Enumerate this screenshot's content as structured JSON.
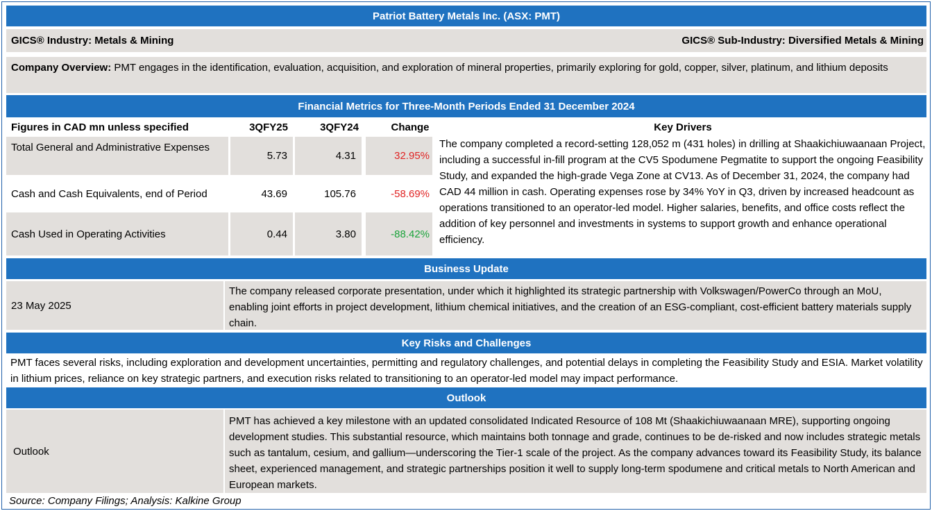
{
  "header": {
    "title": "Patriot Battery Metals Inc. (ASX: PMT)",
    "industry": "GICS® Industry: Metals & Mining",
    "sub_industry": "GICS® Sub-Industry: Diversified Metals & Mining"
  },
  "overview": {
    "label": "Company Overview:",
    "text": " PMT engages in the identification, evaluation, acquisition, and exploration of mineral properties, primarily exploring for gold, copper, silver, platinum, and lithium deposits"
  },
  "financials": {
    "section_title": "Financial Metrics for Three-Month Periods Ended 31 December 2024",
    "columns": [
      "Figures in CAD mn unless specified",
      "3QFY25",
      "3QFY24",
      "Change",
      "Key Drivers"
    ],
    "rows": [
      {
        "label": "Total General and Administrative Expenses",
        "fy25": "5.73",
        "fy24": "4.31",
        "change": "32.95%"
      },
      {
        "label": "Cash and Cash Equivalents, end of Period",
        "fy25": "43.69",
        "fy24": "105.76",
        "change": "-58.69%"
      },
      {
        "label": "Cash Used in Operating Activities",
        "fy25": "0.44",
        "fy24": "3.80",
        "change": "-88.42%"
      }
    ],
    "key_drivers": " The company completed a record-setting 128,052 m (431 holes) in drilling at Shaakichiuwaanaan Project, including a successful in-fill program at the CV5 Spodumene Pegmatite to support the ongoing Feasibility Study, and expanded the high-grade Vega Zone at CV13. As of December 31, 2024, the company had CAD 44 million in cash. Operating expenses rose by 34% YoY in Q3, driven by increased headcount as operations transitioned to an operator-led model. Higher salaries, benefits, and office costs reflect the addition of key personnel and investments in systems to support growth and enhance operational efficiency."
  },
  "business_update": {
    "section_title": "Business Update",
    "date": "23 May 2025",
    "text": "The company released corporate presentation, under which it highlighted its strategic partnership with Volkswagen/PowerCo through an MoU, enabling joint efforts in project development, lithium chemical initiatives, and the creation of an ESG-compliant, cost-efficient battery materials supply chain."
  },
  "risks": {
    "section_title": "Key Risks and Challenges",
    "text": "PMT faces several risks, including exploration and development uncertainties, permitting and regulatory challenges, and potential delays in completing the Feasibility Study and ESIA. Market volatility in lithium prices, reliance on key strategic partners, and execution risks related to transitioning to an operator-led model may impact performance."
  },
  "outlook": {
    "section_title": "Outlook",
    "label": "Outlook",
    "text": "PMT has achieved a key milestone with an updated consolidated Indicated Resource of 108 Mt (Shaakichiuwaanaan MRE), supporting ongoing development studies. This substantial resource, which maintains both tonnage and grade, continues to be de-risked and now includes strategic metals such as tantalum, cesium, and gallium—underscoring the Tier-1 scale of the project. As the company advances toward its Feasibility Study, its balance sheet, experienced management, and strategic partnerships position it well to supply long-term spodumene and critical metals to North American and European markets."
  },
  "footer": {
    "source": "Source: Company Filings; Analysis: Kalkine Group"
  },
  "colors": {
    "header_blue": "#1f72c0",
    "cell_grey": "#e2dfdc",
    "negative": "#e02424",
    "positive_green": "#1aa33a"
  }
}
